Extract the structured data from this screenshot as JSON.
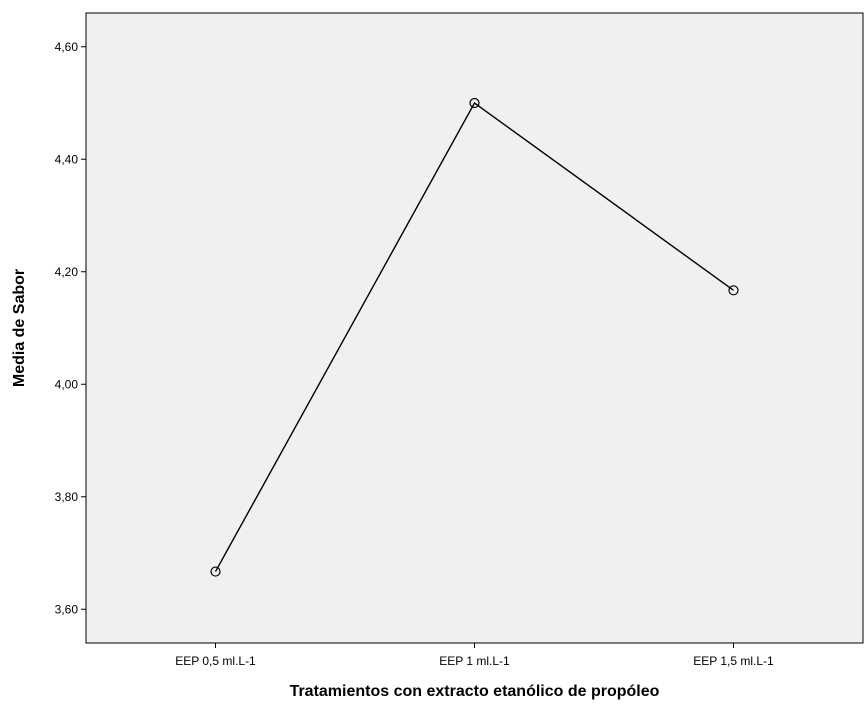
{
  "chart_data": {
    "type": "line",
    "title": "",
    "xlabel": "Tratamientos con extracto etanólico de propóleo",
    "ylabel": "Media de Sabor",
    "categories": [
      "EEP 0,5 ml.L-1",
      "EEP 1 ml.L-1",
      "EEP 1,5 ml.L-1"
    ],
    "series": [
      {
        "values": [
          3.667,
          4.5,
          4.167
        ]
      }
    ],
    "ylim": [
      3.54,
      4.66
    ],
    "yticks": [
      3.6,
      3.8,
      4.0,
      4.2,
      4.4,
      4.6
    ],
    "ytick_labels": [
      "3,60",
      "3,80",
      "4,00",
      "4,20",
      "4,40",
      "4,60"
    ],
    "grid": false,
    "legend": "none",
    "colors": {
      "plot_background": "#f0f0f0",
      "line": "#000000",
      "axis": "#000000"
    },
    "marker": "open-circle"
  }
}
